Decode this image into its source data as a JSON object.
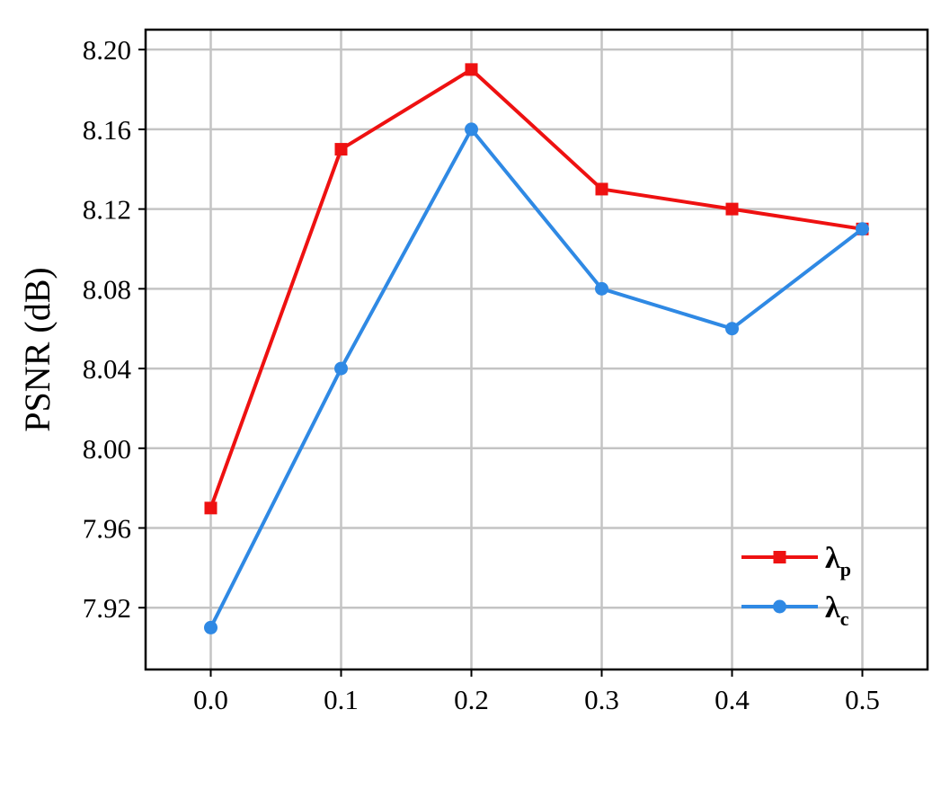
{
  "chart_data": {
    "type": "line",
    "title": "",
    "xlabel": "",
    "ylabel": "PSNR (dB)",
    "x": [
      0.0,
      0.1,
      0.2,
      0.3,
      0.4,
      0.5
    ],
    "x_tick_labels": [
      "0.0",
      "0.1",
      "0.2",
      "0.3",
      "0.4",
      "0.5"
    ],
    "y_ticks": [
      7.92,
      7.96,
      8.0,
      8.04,
      8.08,
      8.12,
      8.16,
      8.2
    ],
    "y_tick_labels": [
      "7.92",
      "7.96",
      "8.00",
      "8.04",
      "8.08",
      "8.12",
      "8.16",
      "8.20"
    ],
    "xlim": [
      -0.05,
      0.55
    ],
    "ylim": [
      7.889,
      8.21
    ],
    "grid": true,
    "legend_position": "lower-right",
    "series": [
      {
        "name": "λ",
        "subscript": "p",
        "values": [
          7.97,
          8.15,
          8.19,
          8.13,
          8.12,
          8.11
        ],
        "color": "#ee1111",
        "marker": "square"
      },
      {
        "name": "λ",
        "subscript": "c",
        "values": [
          7.91,
          8.04,
          8.16,
          8.08,
          8.06,
          8.11
        ],
        "color": "#2f89e4",
        "marker": "circle"
      }
    ]
  }
}
